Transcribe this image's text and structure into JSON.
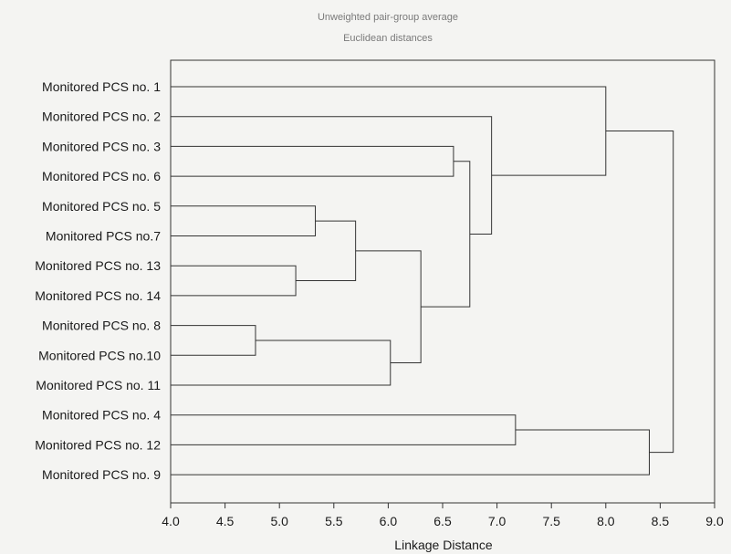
{
  "chart_data": {
    "type": "dendrogram",
    "title": "Unweighted pair-group average",
    "subtitle": "Euclidean distances",
    "xlabel": "Linkage Distance",
    "xlim": [
      4.0,
      9.0
    ],
    "xticks": [
      "4.0",
      "4.5",
      "5.0",
      "5.5",
      "6.0",
      "6.5",
      "7.0",
      "7.5",
      "8.0",
      "8.5",
      "9.0"
    ],
    "leaves": [
      "Monitored PCS no. 1",
      "Monitored PCS no. 2",
      "Monitored PCS no. 3",
      "Monitored PCS no. 6",
      "Monitored PCS no. 5",
      "Monitored PCS no.7",
      "Monitored PCS no. 13",
      "Monitored PCS no. 14",
      "Monitored PCS no. 8",
      "Monitored PCS no.10",
      "Monitored PCS no. 11",
      "Monitored PCS no. 4",
      "Monitored PCS no. 12",
      "Monitored PCS no. 9"
    ],
    "merges": [
      {
        "a": "L8",
        "b": "L9",
        "height": 4.78
      },
      {
        "a": "L6",
        "b": "L7",
        "height": 5.15
      },
      {
        "a": "L4",
        "b": "L5",
        "height": 5.33
      },
      {
        "a": "M2",
        "b": "M1",
        "height": 5.7
      },
      {
        "a": "M0",
        "b": "L10",
        "height": 6.02
      },
      {
        "a": "M3",
        "b": "M4",
        "height": 6.3
      },
      {
        "a": "L2",
        "b": "L3",
        "height": 6.6
      },
      {
        "a": "M6",
        "b": "M5",
        "height": 6.75
      },
      {
        "a": "L1",
        "b": "M7",
        "height": 6.95
      },
      {
        "a": "L11",
        "b": "L12",
        "height": 7.17
      },
      {
        "a": "L0",
        "b": "M8",
        "height": 8.0
      },
      {
        "a": "M9",
        "b": "L13",
        "height": 8.4
      },
      {
        "a": "M10",
        "b": "M11",
        "height": 8.62
      }
    ]
  }
}
